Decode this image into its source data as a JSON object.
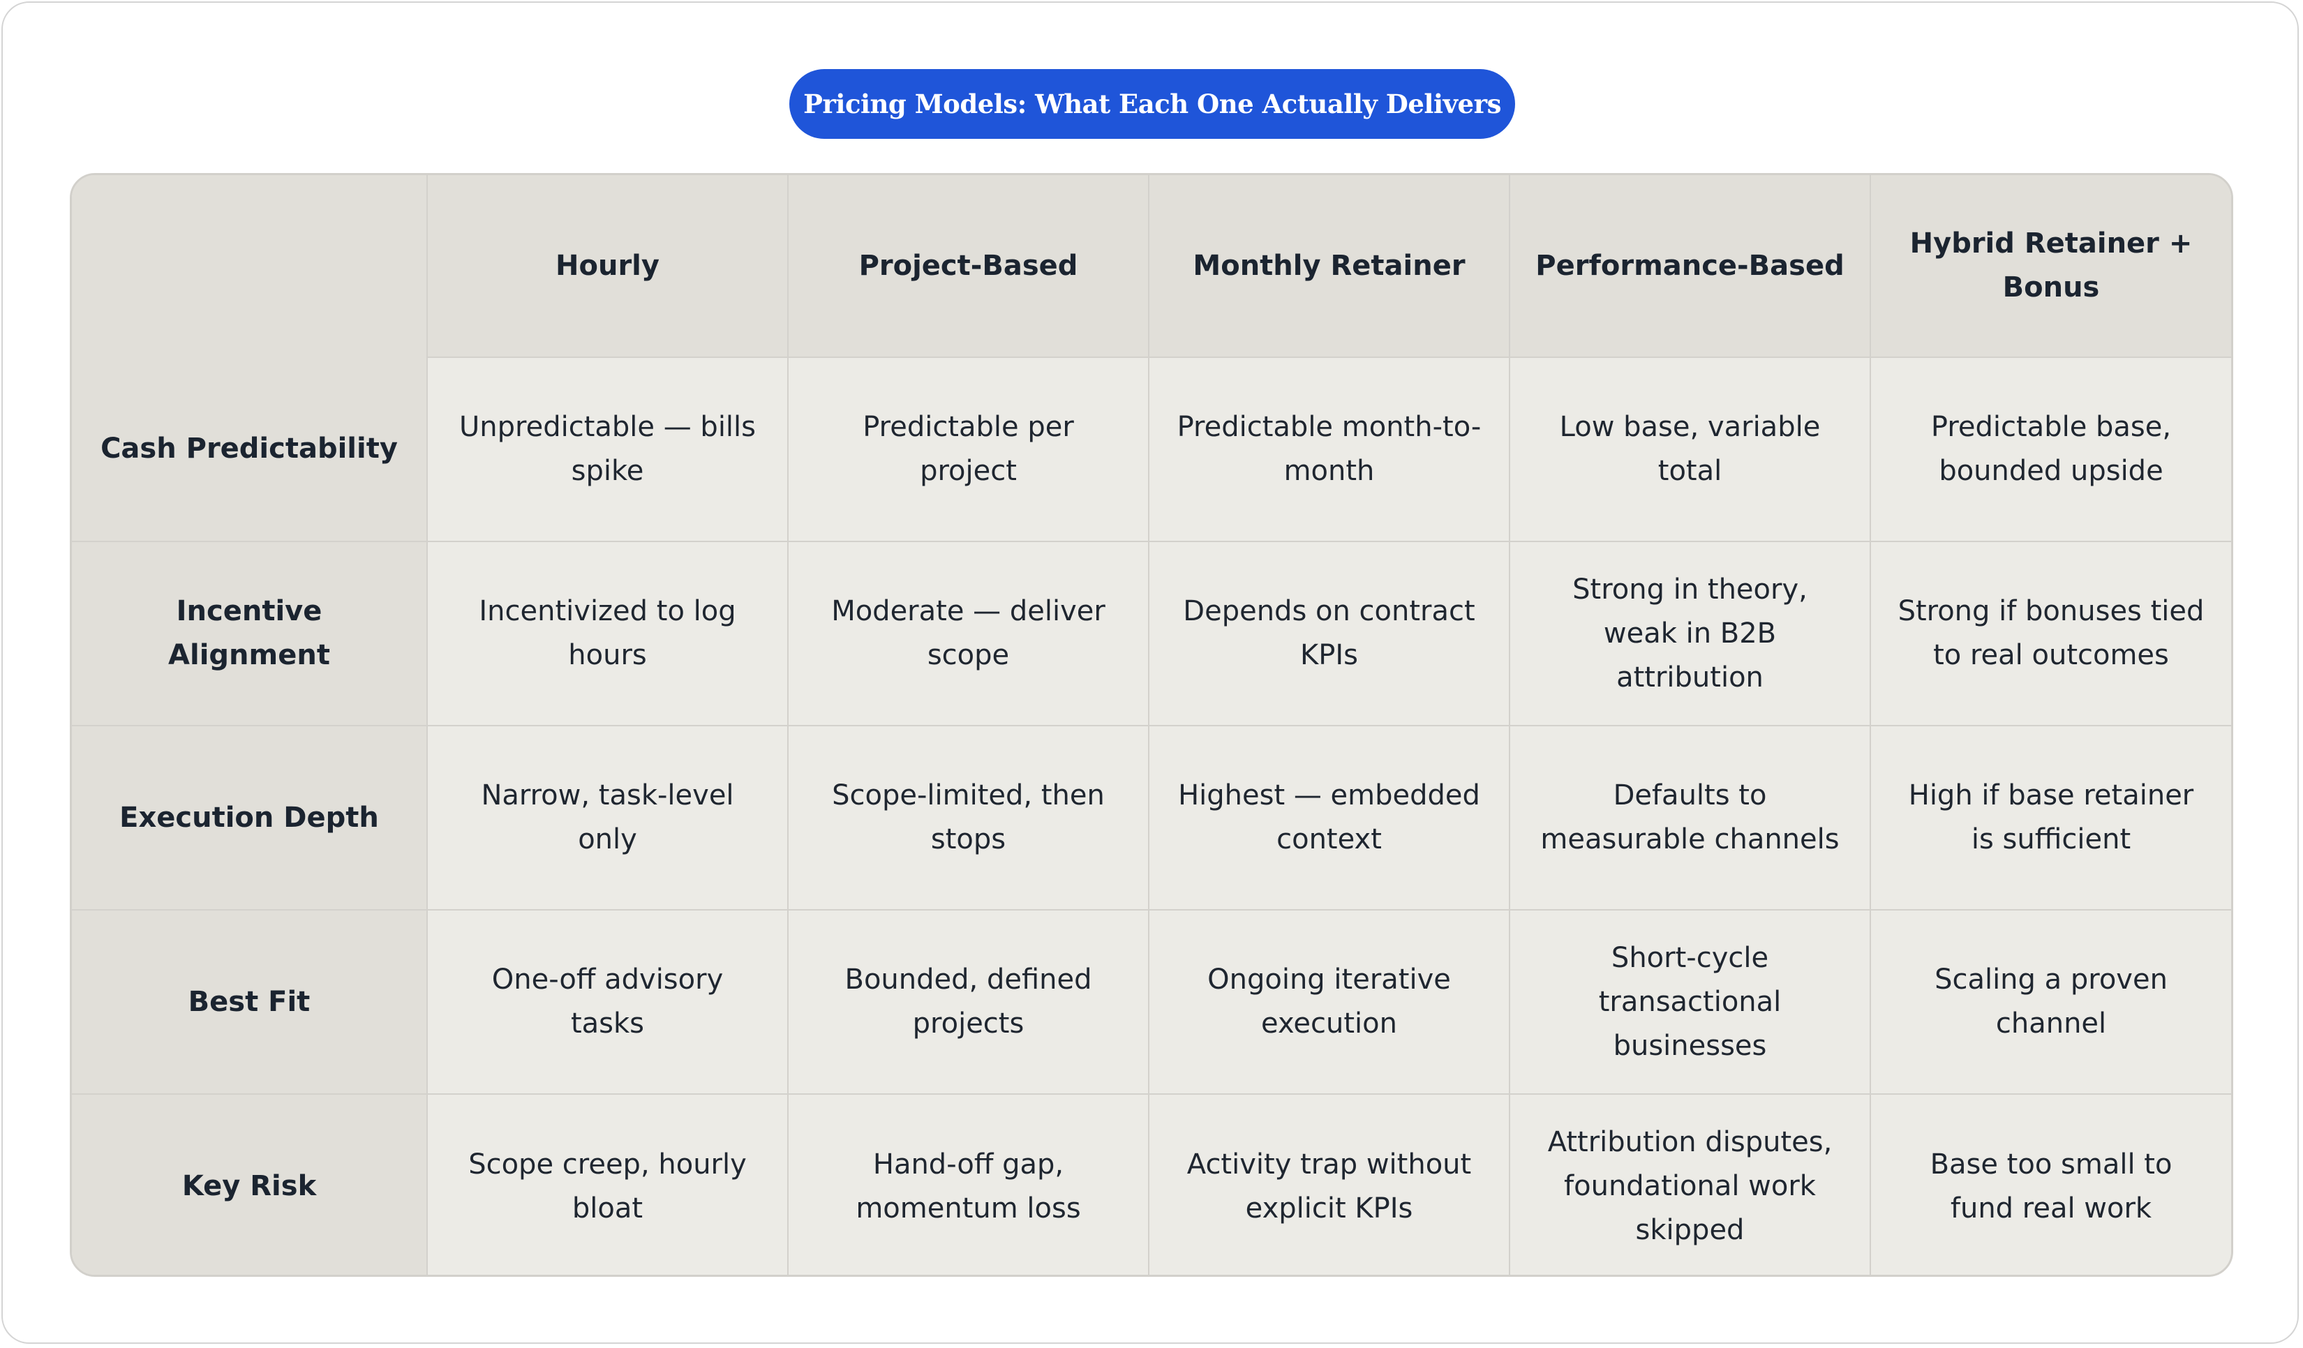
{
  "title": "Pricing Models: What Each One Actually Delivers",
  "table": {
    "corner": "",
    "columns": [
      "Hourly",
      "Project-Based",
      "Monthly Retainer",
      "Performance-Based",
      "Hybrid Retainer + Bonus"
    ],
    "rows": [
      {
        "label": "Cash Predictability",
        "cells": [
          "Unpredictable — bills spike",
          "Predictable per project",
          "Predictable month-to-month",
          "Low base, variable total",
          "Predictable base, bounded upside"
        ]
      },
      {
        "label": "Incentive Alignment",
        "cells": [
          "Incentivized to log hours",
          "Moderate — deliver scope",
          "Depends on contract KPIs",
          "Strong in theory, weak in B2B attribution",
          "Strong if bonuses tied to real outcomes"
        ]
      },
      {
        "label": "Execution Depth",
        "cells": [
          "Narrow, task-level only",
          "Scope-limited, then stops",
          "Highest — embedded context",
          "Defaults to measurable channels",
          "High if base retainer is sufficient"
        ]
      },
      {
        "label": "Best Fit",
        "cells": [
          "One-off advisory tasks",
          "Bounded, defined projects",
          "Ongoing iterative execution",
          "Short-cycle transactional businesses",
          "Scaling a proven channel"
        ]
      },
      {
        "label": "Key Risk",
        "cells": [
          "Scope creep, hourly bloat",
          "Hand-off gap, momentum loss",
          "Activity trap without explicit KPIs",
          "Attribution disputes, foundational work skipped",
          "Base too small to fund real work"
        ]
      }
    ]
  }
}
